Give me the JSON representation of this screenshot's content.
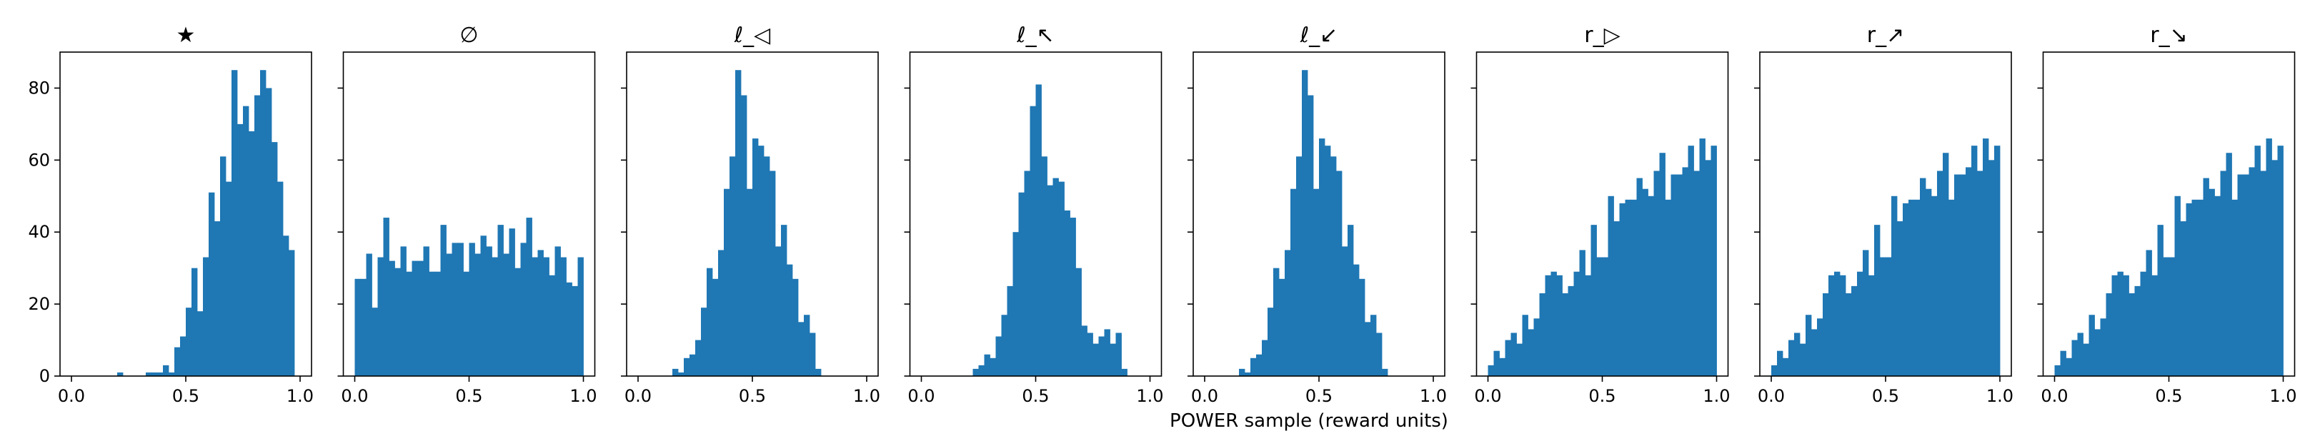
{
  "figure": {
    "xlabel": "POWER sample (reward units)"
  },
  "chart_data": [
    {
      "type": "bar",
      "title": "★",
      "bin_width": 0.025,
      "xlim": [
        -0.05,
        1.05
      ],
      "ylim": [
        0,
        90
      ],
      "xticks": [
        "0.0",
        "0.5",
        "1.0"
      ],
      "yticks": [
        "0",
        "20",
        "40",
        "60",
        "80"
      ],
      "show_yticklabels": true,
      "bar_color": "#1f77b4",
      "bin_starts": [
        0.0,
        0.025,
        0.05,
        0.075,
        0.1,
        0.125,
        0.15,
        0.175,
        0.2,
        0.225,
        0.25,
        0.275,
        0.3,
        0.325,
        0.35,
        0.375,
        0.4,
        0.425,
        0.45,
        0.475,
        0.5,
        0.525,
        0.55,
        0.575,
        0.6,
        0.625,
        0.65,
        0.675,
        0.7,
        0.725,
        0.75,
        0.775,
        0.8,
        0.825,
        0.85,
        0.875,
        0.9,
        0.925,
        0.95,
        0.975
      ],
      "values": [
        0,
        0,
        0,
        0,
        0,
        0,
        0,
        0,
        1,
        0,
        0,
        0,
        0,
        1,
        1,
        1,
        3,
        1,
        8,
        11,
        19,
        30,
        18,
        33,
        51,
        43,
        61,
        54,
        85,
        70,
        75,
        68,
        78,
        85,
        80,
        65,
        54,
        39,
        35,
        0
      ]
    },
    {
      "type": "bar",
      "title": "∅",
      "bin_width": 0.025,
      "xlim": [
        -0.05,
        1.05
      ],
      "ylim": [
        0,
        90
      ],
      "xticks": [
        "0.0",
        "0.5",
        "1.0"
      ],
      "yticks": [
        "0",
        "20",
        "40",
        "60",
        "80"
      ],
      "show_yticklabels": false,
      "bar_color": "#1f77b4",
      "bin_starts": [
        0.0,
        0.025,
        0.05,
        0.075,
        0.1,
        0.125,
        0.15,
        0.175,
        0.2,
        0.225,
        0.25,
        0.275,
        0.3,
        0.325,
        0.35,
        0.375,
        0.4,
        0.425,
        0.45,
        0.475,
        0.5,
        0.525,
        0.55,
        0.575,
        0.6,
        0.625,
        0.65,
        0.675,
        0.7,
        0.725,
        0.75,
        0.775,
        0.8,
        0.825,
        0.85,
        0.875,
        0.9,
        0.925,
        0.95,
        0.975
      ],
      "values": [
        27,
        27,
        34,
        19,
        33,
        44,
        32,
        30,
        36,
        29,
        32,
        32,
        36,
        29,
        29,
        42,
        34,
        37,
        37,
        29,
        37,
        34,
        39,
        36,
        33,
        42,
        34,
        41,
        30,
        37,
        44,
        33,
        35,
        33,
        28,
        36,
        33,
        26,
        25,
        33
      ]
    },
    {
      "type": "bar",
      "title": "ℓ_◁",
      "bin_width": 0.025,
      "xlim": [
        -0.05,
        1.05
      ],
      "ylim": [
        0,
        90
      ],
      "xticks": [
        "0.0",
        "0.5",
        "1.0"
      ],
      "yticks": [
        "0",
        "20",
        "40",
        "60",
        "80"
      ],
      "show_yticklabels": false,
      "bar_color": "#1f77b4",
      "bin_starts": [
        0.0,
        0.025,
        0.05,
        0.075,
        0.1,
        0.125,
        0.15,
        0.175,
        0.2,
        0.225,
        0.25,
        0.275,
        0.3,
        0.325,
        0.35,
        0.375,
        0.4,
        0.425,
        0.45,
        0.475,
        0.5,
        0.525,
        0.55,
        0.575,
        0.6,
        0.625,
        0.65,
        0.675,
        0.7,
        0.725,
        0.75,
        0.775,
        0.8,
        0.825,
        0.85,
        0.875,
        0.9,
        0.925,
        0.95,
        0.975
      ],
      "values": [
        0,
        0,
        0,
        0,
        0,
        0,
        2,
        1,
        5,
        6,
        10,
        19,
        30,
        27,
        35,
        52,
        61,
        85,
        78,
        52,
        66,
        64,
        61,
        57,
        36,
        42,
        31,
        27,
        15,
        17,
        12,
        2,
        0,
        0,
        0,
        0,
        0,
        0,
        0,
        0
      ]
    },
    {
      "type": "bar",
      "title": "ℓ_↖",
      "bin_width": 0.025,
      "xlim": [
        -0.05,
        1.05
      ],
      "ylim": [
        0,
        90
      ],
      "xticks": [
        "0.0",
        "0.5",
        "1.0"
      ],
      "yticks": [
        "0",
        "20",
        "40",
        "60",
        "80"
      ],
      "show_yticklabels": false,
      "bar_color": "#1f77b4",
      "bin_starts": [
        0.0,
        0.025,
        0.05,
        0.075,
        0.1,
        0.125,
        0.15,
        0.175,
        0.2,
        0.225,
        0.25,
        0.275,
        0.3,
        0.325,
        0.35,
        0.375,
        0.4,
        0.425,
        0.45,
        0.475,
        0.5,
        0.525,
        0.55,
        0.575,
        0.6,
        0.625,
        0.65,
        0.675,
        0.7,
        0.725,
        0.75,
        0.775,
        0.8,
        0.825,
        0.85,
        0.875,
        0.9,
        0.925,
        0.95,
        0.975
      ],
      "values": [
        0,
        0,
        0,
        0,
        0,
        0,
        0,
        0,
        0,
        2,
        3,
        6,
        5,
        11,
        17,
        25,
        40,
        51,
        57,
        75,
        81,
        61,
        53,
        55,
        54,
        46,
        44,
        30,
        14,
        12,
        9,
        11,
        13,
        9,
        12,
        2,
        0,
        0,
        0,
        0
      ]
    },
    {
      "type": "bar",
      "title": "ℓ_↙",
      "bin_width": 0.025,
      "xlim": [
        -0.05,
        1.05
      ],
      "ylim": [
        0,
        90
      ],
      "xticks": [
        "0.0",
        "0.5",
        "1.0"
      ],
      "yticks": [
        "0",
        "20",
        "40",
        "60",
        "80"
      ],
      "show_yticklabels": false,
      "bar_color": "#1f77b4",
      "bin_starts": [
        0.0,
        0.025,
        0.05,
        0.075,
        0.1,
        0.125,
        0.15,
        0.175,
        0.2,
        0.225,
        0.25,
        0.275,
        0.3,
        0.325,
        0.35,
        0.375,
        0.4,
        0.425,
        0.45,
        0.475,
        0.5,
        0.525,
        0.55,
        0.575,
        0.6,
        0.625,
        0.65,
        0.675,
        0.7,
        0.725,
        0.75,
        0.775,
        0.8,
        0.825,
        0.85,
        0.875,
        0.9,
        0.925,
        0.95,
        0.975
      ],
      "values": [
        0,
        0,
        0,
        0,
        0,
        0,
        2,
        1,
        5,
        6,
        10,
        19,
        30,
        27,
        35,
        52,
        61,
        85,
        78,
        52,
        66,
        64,
        61,
        57,
        36,
        42,
        31,
        27,
        15,
        17,
        12,
        2,
        0,
        0,
        0,
        0,
        0,
        0,
        0,
        0
      ]
    },
    {
      "type": "bar",
      "title": "r_▷",
      "bin_width": 0.025,
      "xlim": [
        -0.05,
        1.05
      ],
      "ylim": [
        0,
        90
      ],
      "xticks": [
        "0.0",
        "0.5",
        "1.0"
      ],
      "yticks": [
        "0",
        "20",
        "40",
        "60",
        "80"
      ],
      "show_yticklabels": false,
      "bar_color": "#1f77b4",
      "bin_starts": [
        0.0,
        0.025,
        0.05,
        0.075,
        0.1,
        0.125,
        0.15,
        0.175,
        0.2,
        0.225,
        0.25,
        0.275,
        0.3,
        0.325,
        0.35,
        0.375,
        0.4,
        0.425,
        0.45,
        0.475,
        0.5,
        0.525,
        0.55,
        0.575,
        0.6,
        0.625,
        0.65,
        0.675,
        0.7,
        0.725,
        0.75,
        0.775,
        0.8,
        0.825,
        0.85,
        0.875,
        0.9,
        0.925,
        0.95,
        0.975
      ],
      "values": [
        3,
        7,
        5,
        10,
        12,
        9,
        17,
        13,
        16,
        23,
        28,
        29,
        28,
        23,
        25,
        29,
        35,
        28,
        42,
        33,
        33,
        50,
        43,
        48,
        49,
        49,
        55,
        52,
        50,
        57,
        62,
        49,
        56,
        56,
        58,
        64,
        57,
        66,
        60,
        64
      ]
    },
    {
      "type": "bar",
      "title": "r_↗",
      "bin_width": 0.025,
      "xlim": [
        -0.05,
        1.05
      ],
      "ylim": [
        0,
        90
      ],
      "xticks": [
        "0.0",
        "0.5",
        "1.0"
      ],
      "yticks": [
        "0",
        "20",
        "40",
        "60",
        "80"
      ],
      "show_yticklabels": false,
      "bar_color": "#1f77b4",
      "bin_starts": [
        0.0,
        0.025,
        0.05,
        0.075,
        0.1,
        0.125,
        0.15,
        0.175,
        0.2,
        0.225,
        0.25,
        0.275,
        0.3,
        0.325,
        0.35,
        0.375,
        0.4,
        0.425,
        0.45,
        0.475,
        0.5,
        0.525,
        0.55,
        0.575,
        0.6,
        0.625,
        0.65,
        0.675,
        0.7,
        0.725,
        0.75,
        0.775,
        0.8,
        0.825,
        0.85,
        0.875,
        0.9,
        0.925,
        0.95,
        0.975
      ],
      "values": [
        3,
        7,
        5,
        10,
        12,
        9,
        17,
        13,
        16,
        23,
        28,
        29,
        28,
        23,
        25,
        29,
        35,
        28,
        42,
        33,
        33,
        50,
        43,
        48,
        49,
        49,
        55,
        52,
        50,
        57,
        62,
        49,
        56,
        56,
        58,
        64,
        57,
        66,
        60,
        64
      ]
    },
    {
      "type": "bar",
      "title": "r_↘",
      "bin_width": 0.025,
      "xlim": [
        -0.05,
        1.05
      ],
      "ylim": [
        0,
        90
      ],
      "xticks": [
        "0.0",
        "0.5",
        "1.0"
      ],
      "yticks": [
        "0",
        "20",
        "40",
        "60",
        "80"
      ],
      "show_yticklabels": false,
      "bar_color": "#1f77b4",
      "bin_starts": [
        0.0,
        0.025,
        0.05,
        0.075,
        0.1,
        0.125,
        0.15,
        0.175,
        0.2,
        0.225,
        0.25,
        0.275,
        0.3,
        0.325,
        0.35,
        0.375,
        0.4,
        0.425,
        0.45,
        0.475,
        0.5,
        0.525,
        0.55,
        0.575,
        0.6,
        0.625,
        0.65,
        0.675,
        0.7,
        0.725,
        0.75,
        0.775,
        0.8,
        0.825,
        0.85,
        0.875,
        0.9,
        0.925,
        0.95,
        0.975
      ],
      "values": [
        3,
        7,
        5,
        10,
        12,
        9,
        17,
        13,
        16,
        23,
        28,
        29,
        28,
        23,
        25,
        29,
        35,
        28,
        42,
        33,
        33,
        50,
        43,
        48,
        49,
        49,
        55,
        52,
        50,
        57,
        62,
        49,
        56,
        56,
        58,
        64,
        57,
        66,
        60,
        64
      ]
    }
  ]
}
